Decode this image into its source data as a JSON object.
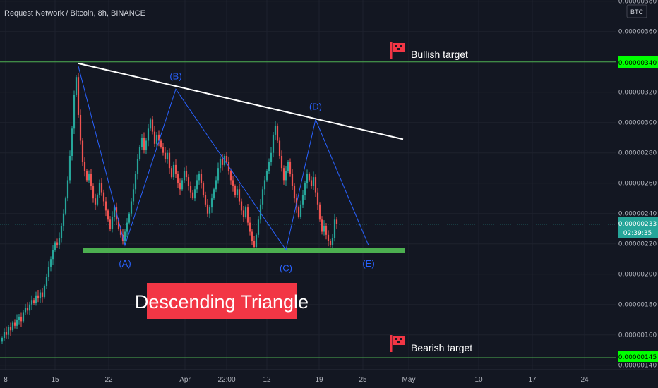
{
  "header": {
    "title": "Request Network / Bitcoin, 8h, BINANCE"
  },
  "price_axis": {
    "currency_badge": "BTC",
    "ticks": [
      "0.00000380",
      "0.00000360",
      "0.00000340",
      "0.00000320",
      "0.00000300",
      "0.00000280",
      "0.00000260",
      "0.00000240",
      "0.00000220",
      "0.00000200",
      "0.00000180",
      "0.00000160",
      "0.00000140"
    ],
    "current_price_label": "0.00000233",
    "countdown": "02:39:35",
    "bullish_price_label": "0.00000340",
    "bearish_price_label": "0.00000145"
  },
  "time_axis": {
    "ticks": [
      "8",
      "15",
      "22",
      "Apr",
      "22:00",
      "12",
      "19",
      "25",
      "May",
      "10",
      "17",
      "24"
    ]
  },
  "annotations": {
    "bullish_target": "Bullish target",
    "bearish_target": "Bearish target",
    "pattern_title": "Descending Triangle",
    "wave_labels": [
      "(A)",
      "(B)",
      "(C)",
      "(D)",
      "(E)"
    ]
  },
  "colors": {
    "background": "#131722",
    "grid": "#1e222d",
    "up": "#26a69a",
    "down": "#ef5350",
    "target_line": "#4caf50",
    "target_label_bg": "#00ff00",
    "support_bar": "#4caf50",
    "resistance_line": "#ffffff",
    "wave_line": "#2962ff",
    "wave_label": "#2962ff",
    "pattern_title_bg": "#f23645",
    "current_price_bg": "#26a69a",
    "flag": "#f23645"
  },
  "chart_data": {
    "type": "candlestick",
    "title": "Request Network / Bitcoin, 8h, BINANCE",
    "y_unit": "BTC",
    "ylim": [
      1.4e-06,
      3.8e-06
    ],
    "levels": {
      "bullish_target": 3.4e-06,
      "bearish_target": 1.45e-06,
      "support": 2.16e-06,
      "current": 2.33e-06
    },
    "resistance_line": {
      "from": [
        0,
        3.39e-06
      ],
      "to": [
        180,
        2.89e-06
      ]
    },
    "wave_points": [
      {
        "label": "(A)",
        "x": 58,
        "y": 2.19e-06
      },
      {
        "label": "(B)",
        "x": 82,
        "y": 3.22e-06
      },
      {
        "label": "(C)",
        "x": 134,
        "y": 2.16e-06
      },
      {
        "label": "(D)",
        "x": 148,
        "y": 3.02e-06
      },
      {
        "label": "(E)",
        "x": 173,
        "y": 2.19e-06
      }
    ],
    "wave_start": {
      "x": 36,
      "y": 3.37e-06
    },
    "candles": {
      "close": [
        1.58e-06,
        1.62e-06,
        1.6e-06,
        1.65e-06,
        1.63e-06,
        1.68e-06,
        1.66e-06,
        1.7e-06,
        1.72e-06,
        1.69e-06,
        1.75e-06,
        1.78e-06,
        1.76e-06,
        1.8e-06,
        1.83e-06,
        1.81e-06,
        1.86e-06,
        1.84e-06,
        1.88e-06,
        1.85e-06,
        1.92e-06,
        1.98e-06,
        2.05e-06,
        2.1e-06,
        2.16e-06,
        2.21e-06,
        2.19e-06,
        2.24e-06,
        2.32e-06,
        2.4e-06,
        2.5e-06,
        2.62e-06,
        2.78e-06,
        2.96e-06,
        3.18e-06,
        3.3e-06,
        3.05e-06,
        2.88e-06,
        2.74e-06,
        2.68e-06,
        2.62e-06,
        2.66e-06,
        2.58e-06,
        2.5e-06,
        2.46e-06,
        2.52e-06,
        2.6e-06,
        2.54e-06,
        2.48e-06,
        2.42e-06,
        2.36e-06,
        2.3e-06,
        2.38e-06,
        2.44e-06,
        2.36e-06,
        2.3e-06,
        2.26e-06,
        2.22e-06,
        2.28e-06,
        2.34e-06,
        2.4e-06,
        2.48e-06,
        2.56e-06,
        2.66e-06,
        2.76e-06,
        2.84e-06,
        2.9e-06,
        2.82e-06,
        2.88e-06,
        2.96e-06,
        3.02e-06,
        2.94e-06,
        2.86e-06,
        2.92e-06,
        2.88e-06,
        2.84e-06,
        2.8e-06,
        2.76e-06,
        2.8e-06,
        2.7e-06,
        2.64e-06,
        2.72e-06,
        2.66e-06,
        2.6e-06,
        2.56e-06,
        2.62e-06,
        2.68e-06,
        2.64e-06,
        2.58e-06,
        2.54e-06,
        2.5e-06,
        2.56e-06,
        2.62e-06,
        2.66e-06,
        2.6e-06,
        2.52e-06,
        2.46e-06,
        2.4e-06,
        2.44e-06,
        2.5e-06,
        2.56e-06,
        2.62e-06,
        2.7e-06,
        2.76e-06,
        2.72e-06,
        2.78e-06,
        2.74e-06,
        2.68e-06,
        2.62e-06,
        2.58e-06,
        2.52e-06,
        2.56e-06,
        2.48e-06,
        2.42e-06,
        2.38e-06,
        2.44e-06,
        2.34e-06,
        2.28e-06,
        2.22e-06,
        2.18e-06,
        2.26e-06,
        2.36e-06,
        2.46e-06,
        2.56e-06,
        2.62e-06,
        2.68e-06,
        2.74e-06,
        2.8e-06,
        2.92e-06,
        2.98e-06,
        2.88e-06,
        2.78e-06,
        2.7e-06,
        2.62e-06,
        2.68e-06,
        2.74e-06,
        2.66e-06,
        2.58e-06,
        2.5e-06,
        2.44e-06,
        2.38e-06,
        2.46e-06,
        2.52e-06,
        2.6e-06,
        2.66e-06,
        2.62e-06,
        2.58e-06,
        2.64e-06,
        2.54e-06,
        2.46e-06,
        2.36e-06,
        2.28e-06,
        2.32e-06,
        2.26e-06,
        2.22e-06,
        2.19e-06,
        2.24e-06,
        2.36e-06,
        2.33e-06
      ]
    },
    "x_ticks": [
      "8",
      "15",
      "22",
      "Apr",
      "22:00",
      "12",
      "19",
      "25",
      "May",
      "10",
      "17",
      "24"
    ]
  }
}
